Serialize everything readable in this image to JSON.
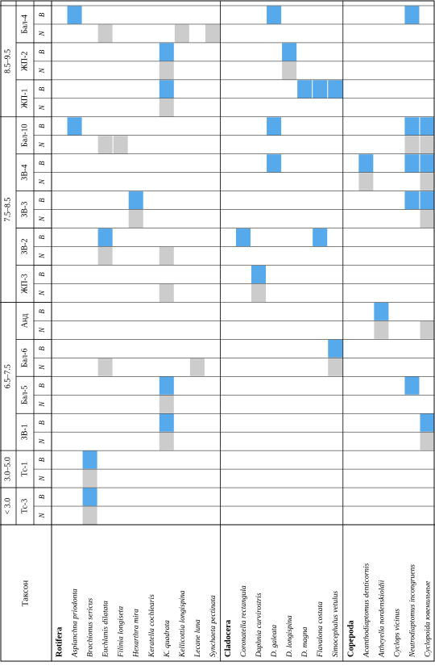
{
  "table": {
    "header": {
      "taxon_label": "Таксон",
      "ph_groups": [
        "< 3.0",
        "3.0–5.0",
        "6.5–7.5",
        "7.5–8.5",
        "8.5–9.5"
      ],
      "stations": [
        "Тс-3",
        "Тс-1",
        "ЗВ-1",
        "Бал-5",
        "Бал-6",
        "Анд",
        "ЖП-3",
        "ЗВ-2",
        "ЗВ-3",
        "ЗВ-4",
        "Бал-10",
        "ЖП-1",
        "ЖП-2",
        "Бал-4"
      ],
      "subcolumns": [
        "N",
        "B"
      ]
    },
    "groups": [
      {
        "name": "Rotifera",
        "taxa": [
          "Asplanchna priodonta",
          "Brachionus sericus",
          "Euchlanis dilatata",
          "Filinia longiseta",
          "Hexarthra mira",
          "Keratella cochlearis",
          "K. quadrata",
          "Kellicottia longispina",
          "Lecane luna",
          "Synchaeta pectinata"
        ]
      },
      {
        "name": "Cladocera",
        "taxa": [
          "Coronatella rectangula",
          "Daphnia curvirostris",
          "D. galeata",
          "D. longispina",
          "D. magna",
          "Flavalona costata",
          "Simocephalus vetulus"
        ]
      },
      {
        "name": "Copepoda",
        "taxa": [
          "Acanthodiaptomus denticornis",
          "Attheyella nordenskioldii",
          "Cyclops vicinus",
          "Neutrodiaptomus incongruens",
          "Cyclopoida ювенильные"
        ]
      }
    ],
    "colors": {
      "N_marker": "#cccccc",
      "B_marker": "#56a9ea"
    },
    "cells": [
      {
        "taxon": "Asplanchna priodonta",
        "station": "Бал-4",
        "metric": "B"
      },
      {
        "taxon": "Asplanchna priodonta",
        "station": "Бал-10",
        "metric": "B"
      },
      {
        "taxon": "Brachionus sericus",
        "station": "Тс-1",
        "metric": "B"
      },
      {
        "taxon": "Brachionus sericus",
        "station": "Тс-1",
        "metric": "N"
      },
      {
        "taxon": "Brachionus sericus",
        "station": "Тс-3",
        "metric": "B"
      },
      {
        "taxon": "Brachionus sericus",
        "station": "Тс-3",
        "metric": "N"
      },
      {
        "taxon": "Euchlanis dilatata",
        "station": "Бал-4",
        "metric": "N"
      },
      {
        "taxon": "Euchlanis dilatata",
        "station": "Бал-10",
        "metric": "N"
      },
      {
        "taxon": "Euchlanis dilatata",
        "station": "ЗВ-2",
        "metric": "B"
      },
      {
        "taxon": "Euchlanis dilatata",
        "station": "ЗВ-2",
        "metric": "N"
      },
      {
        "taxon": "Euchlanis dilatata",
        "station": "Бал-6",
        "metric": "N"
      },
      {
        "taxon": "Filinia longiseta",
        "station": "Бал-10",
        "metric": "N"
      },
      {
        "taxon": "Hexarthra mira",
        "station": "ЗВ-3",
        "metric": "B"
      },
      {
        "taxon": "Hexarthra mira",
        "station": "ЗВ-3",
        "metric": "N"
      },
      {
        "taxon": "K. quadrata",
        "station": "ЖП-2",
        "metric": "B"
      },
      {
        "taxon": "K. quadrata",
        "station": "ЖП-2",
        "metric": "N"
      },
      {
        "taxon": "K. quadrata",
        "station": "ЖП-1",
        "metric": "B"
      },
      {
        "taxon": "K. quadrata",
        "station": "ЖП-1",
        "metric": "N"
      },
      {
        "taxon": "K. quadrata",
        "station": "ЗВ-2",
        "metric": "N"
      },
      {
        "taxon": "K. quadrata",
        "station": "ЖП-3",
        "metric": "N"
      },
      {
        "taxon": "K. quadrata",
        "station": "Бал-5",
        "metric": "B"
      },
      {
        "taxon": "K. quadrata",
        "station": "Бал-5",
        "metric": "N"
      },
      {
        "taxon": "K. quadrata",
        "station": "ЗВ-1",
        "metric": "B"
      },
      {
        "taxon": "K. quadrata",
        "station": "ЗВ-1",
        "metric": "N"
      },
      {
        "taxon": "Kellicottia longispina",
        "station": "Бал-4",
        "metric": "N"
      },
      {
        "taxon": "Lecane luna",
        "station": "Бал-6",
        "metric": "N"
      },
      {
        "taxon": "Synchaeta pectinata",
        "station": "Бал-4",
        "metric": "N"
      },
      {
        "taxon": "Coronatella rectangula",
        "station": "ЗВ-2",
        "metric": "B"
      },
      {
        "taxon": "Daphnia curvirostris",
        "station": "ЖП-3",
        "metric": "B"
      },
      {
        "taxon": "Daphnia curvirostris",
        "station": "ЖП-3",
        "metric": "N"
      },
      {
        "taxon": "D. galeata",
        "station": "Бал-4",
        "metric": "B"
      },
      {
        "taxon": "D. galeata",
        "station": "Бал-10",
        "metric": "B"
      },
      {
        "taxon": "D. galeata",
        "station": "ЗВ-4",
        "metric": "B"
      },
      {
        "taxon": "D. longispina",
        "station": "ЖП-2",
        "metric": "B"
      },
      {
        "taxon": "D. longispina",
        "station": "ЖП-2",
        "metric": "N"
      },
      {
        "taxon": "D. magna",
        "station": "ЖП-1",
        "metric": "B"
      },
      {
        "taxon": "Flavalona costata",
        "station": "ЖП-1",
        "metric": "B"
      },
      {
        "taxon": "Flavalona costata",
        "station": "ЗВ-2",
        "metric": "B"
      },
      {
        "taxon": "Simocephalus vetulus",
        "station": "ЖП-1",
        "metric": "B"
      },
      {
        "taxon": "Simocephalus vetulus",
        "station": "Бал-6",
        "metric": "B"
      },
      {
        "taxon": "Simocephalus vetulus",
        "station": "Бал-6",
        "metric": "N"
      },
      {
        "taxon": "Acanthodiaptomus denticornis",
        "station": "ЗВ-4",
        "metric": "B"
      },
      {
        "taxon": "Acanthodiaptomus denticornis",
        "station": "ЗВ-4",
        "metric": "N"
      },
      {
        "taxon": "Attheyella nordenskioldii",
        "station": "Анд",
        "metric": "B"
      },
      {
        "taxon": "Attheyella nordenskioldii",
        "station": "Анд",
        "metric": "N"
      },
      {
        "taxon": "Neutrodiaptomus incongruens",
        "station": "Бал-4",
        "metric": "B"
      },
      {
        "taxon": "Neutrodiaptomus incongruens",
        "station": "Бал-10",
        "metric": "B"
      },
      {
        "taxon": "Neutrodiaptomus incongruens",
        "station": "Бал-10",
        "metric": "N"
      },
      {
        "taxon": "Neutrodiaptomus incongruens",
        "station": "ЗВ-4",
        "metric": "B"
      },
      {
        "taxon": "Neutrodiaptomus incongruens",
        "station": "ЗВ-3",
        "metric": "B"
      },
      {
        "taxon": "Neutrodiaptomus incongruens",
        "station": "Бал-5",
        "metric": "B"
      },
      {
        "taxon": "Cyclopoida ювенильные",
        "station": "Бал-10",
        "metric": "B"
      },
      {
        "taxon": "Cyclopoida ювенильные",
        "station": "Бал-10",
        "metric": "N"
      },
      {
        "taxon": "Cyclopoida ювенильные",
        "station": "ЗВ-4",
        "metric": "B"
      },
      {
        "taxon": "Cyclopoida ювенильные",
        "station": "ЗВ-4",
        "metric": "N"
      },
      {
        "taxon": "Cyclopoida ювенильные",
        "station": "ЗВ-3",
        "metric": "B"
      },
      {
        "taxon": "Cyclopoida ювенильные",
        "station": "ЗВ-3",
        "metric": "N"
      },
      {
        "taxon": "Cyclopoida ювенильные",
        "station": "Анд",
        "metric": "N"
      },
      {
        "taxon": "Cyclopoida ювенильные",
        "station": "ЗВ-1",
        "metric": "B"
      },
      {
        "taxon": "Cyclopoida ювенильные",
        "station": "ЗВ-1",
        "metric": "N"
      }
    ]
  }
}
